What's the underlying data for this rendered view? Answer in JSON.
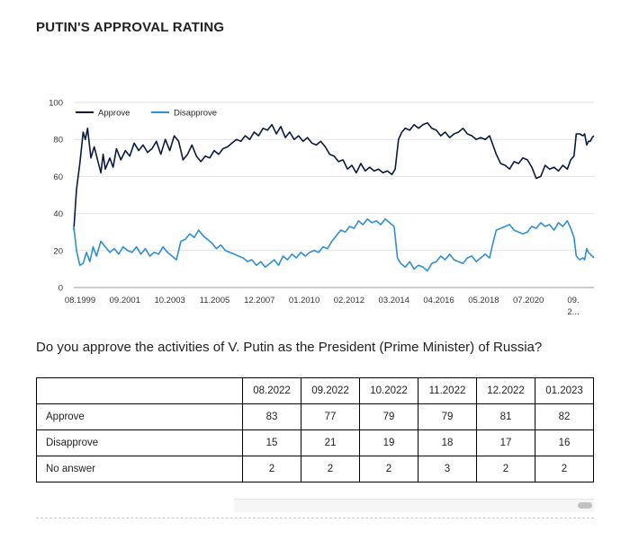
{
  "page": {
    "title": "PUTIN'S APPROVAL RATING",
    "question": "Do you approve the activities of V. Putin as the President (Prime Minister) of Russia?"
  },
  "chart_data": {
    "type": "line",
    "title": "PUTIN'S APPROVAL RATING",
    "xlabel": "",
    "ylabel": "",
    "ylim": [
      0,
      100
    ],
    "yticks": [
      0,
      20,
      40,
      60,
      80,
      100
    ],
    "grid": true,
    "legend_position": "top-left",
    "x_tick_labels": [
      "08.1999",
      "09.2001",
      "10.2003",
      "11.2005",
      "12.2007",
      "01.2010",
      "02.2012",
      "03.2014",
      "04.2016",
      "05.2018",
      "07.2020",
      "09.",
      "2..."
    ],
    "x_start": 1999.58,
    "x_end": 2023.0,
    "colors": {
      "approve": "#0b1a3f",
      "disapprove": "#2f8fd0",
      "grid": "#e2e2e2",
      "axis": "#999999"
    },
    "series": [
      {
        "name": "Approve",
        "key": "approve",
        "points": [
          [
            1999.58,
            31
          ],
          [
            1999.7,
            53
          ],
          [
            1999.85,
            67
          ],
          [
            2000.0,
            84
          ],
          [
            2000.1,
            80
          ],
          [
            2000.2,
            86
          ],
          [
            2000.35,
            70
          ],
          [
            2000.5,
            76
          ],
          [
            2000.65,
            69
          ],
          [
            2000.8,
            62
          ],
          [
            2000.9,
            72
          ],
          [
            2001.0,
            64
          ],
          [
            2001.2,
            70
          ],
          [
            2001.35,
            65
          ],
          [
            2001.5,
            75
          ],
          [
            2001.7,
            69
          ],
          [
            2001.9,
            74
          ],
          [
            2002.1,
            71
          ],
          [
            2002.3,
            78
          ],
          [
            2002.5,
            74
          ],
          [
            2002.7,
            77
          ],
          [
            2002.9,
            73
          ],
          [
            2003.1,
            75
          ],
          [
            2003.3,
            79
          ],
          [
            2003.5,
            72
          ],
          [
            2003.7,
            80
          ],
          [
            2003.9,
            74
          ],
          [
            2004.1,
            82
          ],
          [
            2004.3,
            79
          ],
          [
            2004.5,
            69
          ],
          [
            2004.7,
            72
          ],
          [
            2004.9,
            77
          ],
          [
            2005.1,
            71
          ],
          [
            2005.3,
            68
          ],
          [
            2005.5,
            71
          ],
          [
            2005.7,
            70
          ],
          [
            2005.9,
            74
          ],
          [
            2006.1,
            72
          ],
          [
            2006.3,
            75
          ],
          [
            2006.5,
            76
          ],
          [
            2006.7,
            78
          ],
          [
            2006.9,
            80
          ],
          [
            2007.1,
            79
          ],
          [
            2007.3,
            82
          ],
          [
            2007.5,
            80
          ],
          [
            2007.7,
            84
          ],
          [
            2007.9,
            82
          ],
          [
            2008.1,
            86
          ],
          [
            2008.3,
            85
          ],
          [
            2008.5,
            88
          ],
          [
            2008.7,
            83
          ],
          [
            2008.9,
            87
          ],
          [
            2009.1,
            81
          ],
          [
            2009.3,
            84
          ],
          [
            2009.5,
            80
          ],
          [
            2009.7,
            82
          ],
          [
            2009.9,
            79
          ],
          [
            2010.1,
            81
          ],
          [
            2010.3,
            78
          ],
          [
            2010.5,
            77
          ],
          [
            2010.7,
            79
          ],
          [
            2010.9,
            76
          ],
          [
            2011.1,
            72
          ],
          [
            2011.3,
            71
          ],
          [
            2011.5,
            68
          ],
          [
            2011.7,
            69
          ],
          [
            2011.9,
            64
          ],
          [
            2012.1,
            66
          ],
          [
            2012.3,
            62
          ],
          [
            2012.5,
            67
          ],
          [
            2012.7,
            63
          ],
          [
            2012.9,
            65
          ],
          [
            2013.1,
            63
          ],
          [
            2013.3,
            64
          ],
          [
            2013.5,
            62
          ],
          [
            2013.7,
            63
          ],
          [
            2013.9,
            61
          ],
          [
            2014.05,
            64
          ],
          [
            2014.2,
            80
          ],
          [
            2014.35,
            84
          ],
          [
            2014.5,
            86
          ],
          [
            2014.7,
            85
          ],
          [
            2014.9,
            88
          ],
          [
            2015.1,
            86
          ],
          [
            2015.3,
            88
          ],
          [
            2015.5,
            89
          ],
          [
            2015.7,
            86
          ],
          [
            2015.9,
            85
          ],
          [
            2016.1,
            82
          ],
          [
            2016.3,
            84
          ],
          [
            2016.5,
            81
          ],
          [
            2016.7,
            83
          ],
          [
            2016.9,
            84
          ],
          [
            2017.1,
            86
          ],
          [
            2017.3,
            83
          ],
          [
            2017.5,
            82
          ],
          [
            2017.7,
            80
          ],
          [
            2017.9,
            81
          ],
          [
            2018.1,
            80
          ],
          [
            2018.3,
            82
          ],
          [
            2018.45,
            77
          ],
          [
            2018.6,
            72
          ],
          [
            2018.8,
            67
          ],
          [
            2019.0,
            66
          ],
          [
            2019.2,
            64
          ],
          [
            2019.4,
            68
          ],
          [
            2019.6,
            67
          ],
          [
            2019.8,
            70
          ],
          [
            2020.0,
            69
          ],
          [
            2020.2,
            65
          ],
          [
            2020.4,
            59
          ],
          [
            2020.6,
            60
          ],
          [
            2020.8,
            66
          ],
          [
            2021.0,
            64
          ],
          [
            2021.2,
            65
          ],
          [
            2021.4,
            63
          ],
          [
            2021.6,
            66
          ],
          [
            2021.8,
            64
          ],
          [
            2021.95,
            69
          ],
          [
            2022.1,
            71
          ],
          [
            2022.2,
            83
          ],
          [
            2022.35,
            83
          ],
          [
            2022.5,
            82
          ],
          [
            2022.58,
            83
          ],
          [
            2022.67,
            77
          ],
          [
            2022.75,
            79
          ],
          [
            2022.83,
            79
          ],
          [
            2022.92,
            81
          ],
          [
            2023.0,
            82
          ]
        ]
      },
      {
        "name": "Disapprove",
        "key": "disapprove",
        "points": [
          [
            1999.58,
            33
          ],
          [
            1999.7,
            20
          ],
          [
            1999.85,
            12
          ],
          [
            2000.0,
            13
          ],
          [
            2000.15,
            19
          ],
          [
            2000.3,
            14
          ],
          [
            2000.45,
            22
          ],
          [
            2000.6,
            17
          ],
          [
            2000.8,
            25
          ],
          [
            2001.0,
            22
          ],
          [
            2001.2,
            19
          ],
          [
            2001.4,
            21
          ],
          [
            2001.6,
            18
          ],
          [
            2001.8,
            22
          ],
          [
            2002.0,
            20
          ],
          [
            2002.2,
            19
          ],
          [
            2002.4,
            22
          ],
          [
            2002.6,
            18
          ],
          [
            2002.8,
            21
          ],
          [
            2003.0,
            17
          ],
          [
            2003.2,
            19
          ],
          [
            2003.4,
            18
          ],
          [
            2003.6,
            22
          ],
          [
            2003.8,
            19
          ],
          [
            2004.0,
            17
          ],
          [
            2004.2,
            15
          ],
          [
            2004.4,
            25
          ],
          [
            2004.6,
            26
          ],
          [
            2004.8,
            29
          ],
          [
            2005.0,
            27
          ],
          [
            2005.2,
            31
          ],
          [
            2005.4,
            28
          ],
          [
            2005.6,
            26
          ],
          [
            2005.8,
            24
          ],
          [
            2006.0,
            21
          ],
          [
            2006.2,
            23
          ],
          [
            2006.4,
            20
          ],
          [
            2006.6,
            19
          ],
          [
            2006.8,
            18
          ],
          [
            2007.0,
            17
          ],
          [
            2007.2,
            16
          ],
          [
            2007.4,
            14
          ],
          [
            2007.6,
            15
          ],
          [
            2007.8,
            12
          ],
          [
            2008.0,
            14
          ],
          [
            2008.2,
            11
          ],
          [
            2008.4,
            13
          ],
          [
            2008.6,
            15
          ],
          [
            2008.8,
            12
          ],
          [
            2009.0,
            17
          ],
          [
            2009.2,
            15
          ],
          [
            2009.4,
            18
          ],
          [
            2009.6,
            16
          ],
          [
            2009.8,
            19
          ],
          [
            2010.0,
            17
          ],
          [
            2010.2,
            19
          ],
          [
            2010.4,
            20
          ],
          [
            2010.6,
            19
          ],
          [
            2010.8,
            22
          ],
          [
            2011.0,
            21
          ],
          [
            2011.2,
            25
          ],
          [
            2011.4,
            28
          ],
          [
            2011.6,
            31
          ],
          [
            2011.8,
            30
          ],
          [
            2012.0,
            33
          ],
          [
            2012.2,
            32
          ],
          [
            2012.4,
            36
          ],
          [
            2012.6,
            34
          ],
          [
            2012.8,
            37
          ],
          [
            2013.0,
            35
          ],
          [
            2013.2,
            36
          ],
          [
            2013.4,
            34
          ],
          [
            2013.6,
            37
          ],
          [
            2013.8,
            35
          ],
          [
            2014.0,
            33
          ],
          [
            2014.15,
            16
          ],
          [
            2014.3,
            13
          ],
          [
            2014.5,
            11
          ],
          [
            2014.7,
            14
          ],
          [
            2014.9,
            10
          ],
          [
            2015.1,
            12
          ],
          [
            2015.3,
            11
          ],
          [
            2015.5,
            9
          ],
          [
            2015.7,
            13
          ],
          [
            2015.9,
            14
          ],
          [
            2016.1,
            17
          ],
          [
            2016.3,
            15
          ],
          [
            2016.5,
            18
          ],
          [
            2016.7,
            15
          ],
          [
            2016.9,
            14
          ],
          [
            2017.1,
            13
          ],
          [
            2017.3,
            16
          ],
          [
            2017.5,
            17
          ],
          [
            2017.7,
            14
          ],
          [
            2017.9,
            16
          ],
          [
            2018.1,
            18
          ],
          [
            2018.3,
            16
          ],
          [
            2018.45,
            24
          ],
          [
            2018.6,
            31
          ],
          [
            2018.8,
            32
          ],
          [
            2019.0,
            33
          ],
          [
            2019.2,
            34
          ],
          [
            2019.4,
            31
          ],
          [
            2019.6,
            30
          ],
          [
            2019.8,
            29
          ],
          [
            2020.0,
            30
          ],
          [
            2020.2,
            33
          ],
          [
            2020.4,
            32
          ],
          [
            2020.6,
            35
          ],
          [
            2020.8,
            33
          ],
          [
            2021.0,
            34
          ],
          [
            2021.2,
            31
          ],
          [
            2021.4,
            35
          ],
          [
            2021.6,
            33
          ],
          [
            2021.8,
            36
          ],
          [
            2021.95,
            32
          ],
          [
            2022.1,
            27
          ],
          [
            2022.2,
            17
          ],
          [
            2022.35,
            15
          ],
          [
            2022.5,
            16
          ],
          [
            2022.58,
            15
          ],
          [
            2022.67,
            21
          ],
          [
            2022.75,
            19
          ],
          [
            2022.83,
            18
          ],
          [
            2022.92,
            17
          ],
          [
            2023.0,
            16
          ]
        ]
      }
    ]
  },
  "table": {
    "columns": [
      "08.2022",
      "09.2022",
      "10.2022",
      "11.2022",
      "12.2022",
      "01.2023"
    ],
    "rows": [
      {
        "label": "Approve",
        "values": [
          "83",
          "77",
          "79",
          "79",
          "81",
          "82"
        ]
      },
      {
        "label": "Disapprove",
        "values": [
          "15",
          "21",
          "19",
          "18",
          "17",
          "16"
        ]
      },
      {
        "label": "No answer",
        "values": [
          "2",
          "2",
          "2",
          "3",
          "2",
          "2"
        ]
      }
    ]
  }
}
